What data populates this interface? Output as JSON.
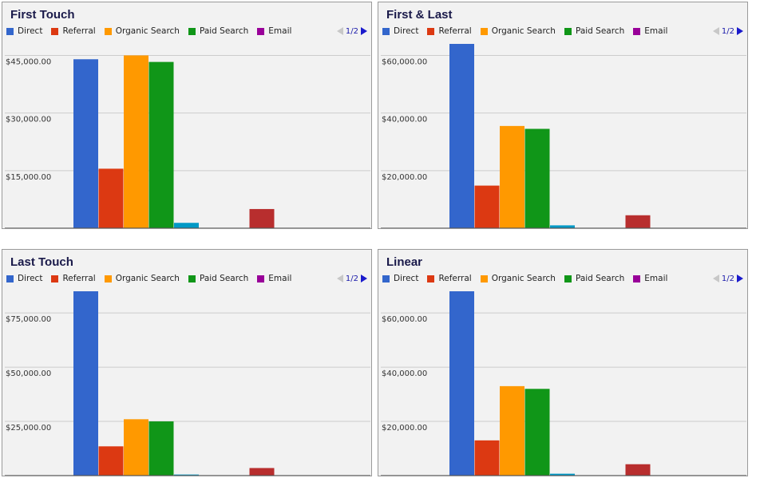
{
  "pager": {
    "label": "1/2",
    "prev_icon": "arrow-left-icon",
    "next_icon": "arrow-right-icon"
  },
  "legend": [
    {
      "name": "Direct",
      "color": "#3366cc"
    },
    {
      "name": "Referral",
      "color": "#dc3912"
    },
    {
      "name": "Organic Search",
      "color": "#ff9900"
    },
    {
      "name": "Paid Search",
      "color": "#109618"
    },
    {
      "name": "Email",
      "color": "#990099"
    }
  ],
  "chart_data": [
    {
      "type": "bar",
      "title": "First Touch",
      "categories": [
        "Direct",
        "Referral",
        "Organic Search",
        "Paid Search",
        "",
        "",
        "",
        "",
        ""
      ],
      "values": [
        44000,
        15500,
        45000,
        43300,
        1400,
        0,
        0,
        5000,
        0
      ],
      "colors": [
        "#3366cc",
        "#dc3912",
        "#ff9900",
        "#109618",
        "#0099c6",
        "#990099",
        "#dd4477",
        "#b82e2e",
        "#66aa00"
      ],
      "yticks": [
        15000,
        30000,
        45000
      ],
      "yticklabels": [
        "$15,000.00",
        "$30,000.00",
        "$45,000.00"
      ],
      "ylim": [
        0,
        48000
      ],
      "grid": true
    },
    {
      "type": "bar",
      "title": "First & Last",
      "categories": [
        "Direct",
        "Referral",
        "Organic Search",
        "Paid Search",
        "",
        "",
        "",
        "",
        ""
      ],
      "values": [
        64000,
        14800,
        35500,
        34500,
        1000,
        0,
        0,
        4500,
        0
      ],
      "colors": [
        "#3366cc",
        "#dc3912",
        "#ff9900",
        "#109618",
        "#0099c6",
        "#990099",
        "#dd4477",
        "#b82e2e",
        "#66aa00"
      ],
      "yticks": [
        20000,
        40000,
        60000
      ],
      "yticklabels": [
        "$20,000.00",
        "$40,000.00",
        "$60,000.00"
      ],
      "ylim": [
        0,
        64000
      ],
      "grid": true
    },
    {
      "type": "bar",
      "title": "Last Touch",
      "categories": [
        "Direct",
        "Referral",
        "Organic Search",
        "Paid Search",
        "",
        "",
        "",
        "",
        ""
      ],
      "values": [
        85000,
        13500,
        26000,
        25000,
        500,
        0,
        0,
        3500,
        0
      ],
      "colors": [
        "#3366cc",
        "#dc3912",
        "#ff9900",
        "#109618",
        "#0099c6",
        "#990099",
        "#dd4477",
        "#b82e2e",
        "#66aa00"
      ],
      "yticks": [
        25000,
        50000,
        75000
      ],
      "yticklabels": [
        "$25,000.00",
        "$50,000.00",
        "$75,000.00"
      ],
      "ylim": [
        0,
        85000
      ],
      "grid": true
    },
    {
      "type": "bar",
      "title": "Linear",
      "categories": [
        "Direct",
        "Referral",
        "Organic Search",
        "Paid Search",
        "",
        "",
        "",
        "",
        ""
      ],
      "values": [
        68000,
        13000,
        33000,
        32000,
        700,
        0,
        0,
        4200,
        0
      ],
      "colors": [
        "#3366cc",
        "#dc3912",
        "#ff9900",
        "#109618",
        "#0099c6",
        "#990099",
        "#dd4477",
        "#b82e2e",
        "#66aa00"
      ],
      "yticks": [
        20000,
        40000,
        60000
      ],
      "yticklabels": [
        "$20,000.00",
        "$40,000.00",
        "$60,000.00"
      ],
      "ylim": [
        0,
        68000
      ],
      "grid": true
    }
  ]
}
